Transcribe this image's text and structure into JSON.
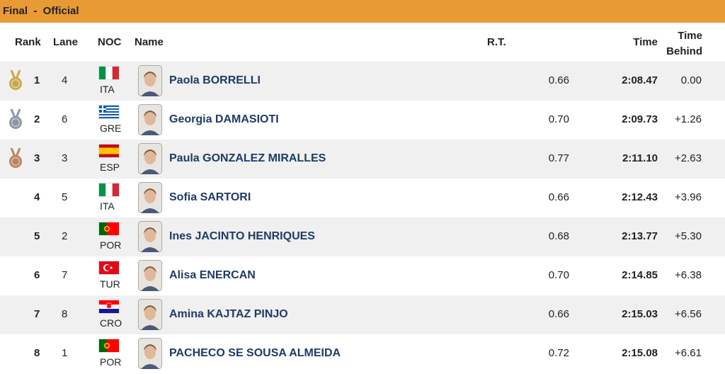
{
  "header": {
    "title": "Final  -  Official"
  },
  "table": {
    "columns": [
      "Rank",
      "Lane",
      "NOC",
      "Name",
      "R.T.",
      "Time",
      "Time Behind"
    ],
    "rows": [
      [
        "1",
        "4",
        "ITA",
        "Paola BORRELLI",
        "0.66",
        "2:08.47",
        "0.00"
      ],
      [
        "2",
        "6",
        "GRE",
        "Georgia DAMASIOTI",
        "0.70",
        "2:09.73",
        "+1.26"
      ],
      [
        "3",
        "3",
        "ESP",
        "Paula GONZALEZ MIRALLES",
        "0.77",
        "2:11.10",
        "+2.63"
      ],
      [
        "4",
        "5",
        "ITA",
        "Sofia SARTORI",
        "0.66",
        "2:12.43",
        "+3.96"
      ],
      [
        "5",
        "2",
        "POR",
        "Ines JACINTO HENRIQUES",
        "0.68",
        "2:13.77",
        "+5.30"
      ],
      [
        "6",
        "7",
        "TUR",
        "Alisa ENERCAN",
        "0.70",
        "2:14.85",
        "+6.38"
      ],
      [
        "7",
        "8",
        "CRO",
        "Amina KAJTAZ PINJO",
        "0.66",
        "2:15.03",
        "+6.56"
      ],
      [
        "8",
        "1",
        "POR",
        "PACHECO SE SOUSA ALMEIDA",
        "0.72",
        "2:15.08",
        "+6.61"
      ]
    ]
  }
}
